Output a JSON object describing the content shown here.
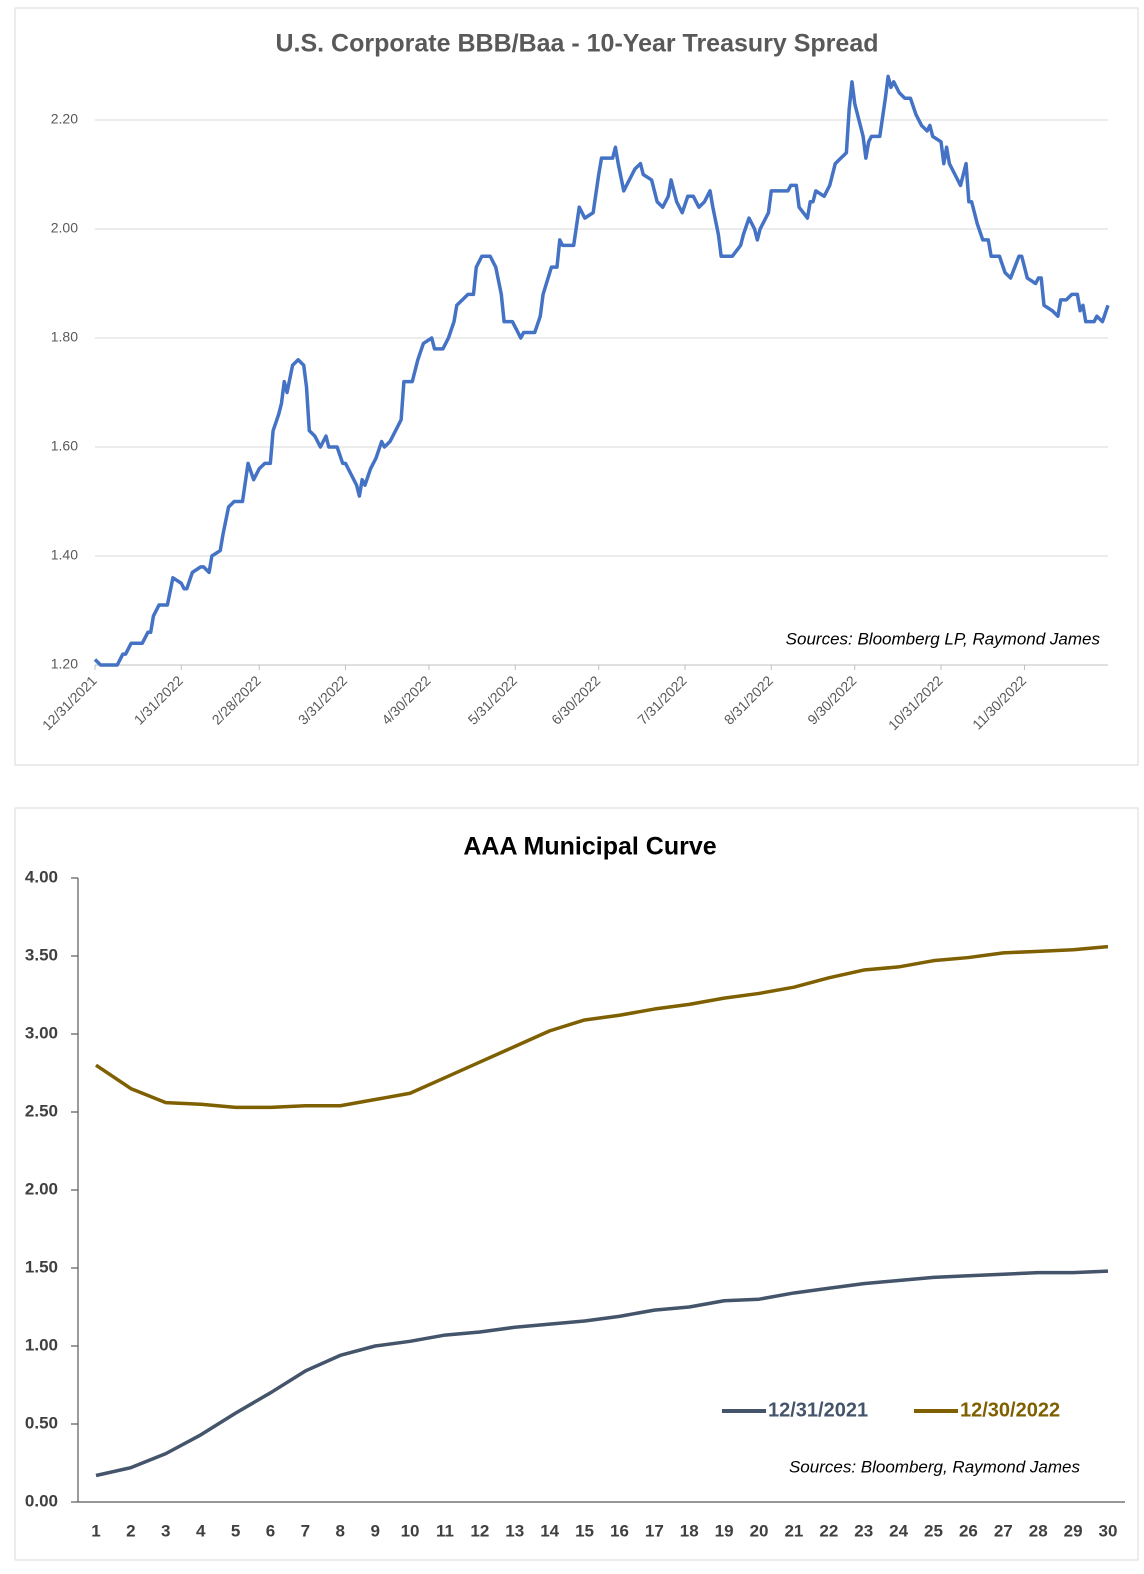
{
  "chart_data": [
    {
      "type": "line",
      "title": "U.S. Corporate BBB/Baa - 10-Year Treasury Spread",
      "annotation": "Sources: Bloomberg LP, Raymond James",
      "color": "#4472c4",
      "grid": true,
      "x": [
        "12/31/2021",
        "1/2/2022",
        "1/5/2022",
        "1/8/2022",
        "1/10/2022",
        "1/11/2022",
        "1/13/2022",
        "1/17/2022",
        "1/19/2022",
        "1/20/2022",
        "1/21/2022",
        "1/23/2022",
        "1/26/2022",
        "1/28/2022",
        "1/31/2022",
        "2/1/2022",
        "2/2/2022",
        "2/4/2022",
        "2/7/2022",
        "2/8/2022",
        "2/10/2022",
        "2/11/2022",
        "2/14/2022",
        "2/15/2022",
        "2/17/2022",
        "2/19/2022",
        "2/22/2022",
        "2/24/2022",
        "2/26/2022",
        "2/28/2022",
        "3/2/2022",
        "3/4/2022",
        "3/5/2022",
        "3/7/2022",
        "3/8/2022",
        "3/9/2022",
        "3/10/2022",
        "3/12/2022",
        "3/14/2022",
        "3/16/2022",
        "3/17/2022",
        "3/18/2022",
        "3/20/2022",
        "3/22/2022",
        "3/24/2022",
        "3/25/2022",
        "3/28/2022",
        "3/30/2022",
        "3/31/2022",
        "4/2/2022",
        "4/4/2022",
        "4/5/2022",
        "4/6/2022",
        "4/7/2022",
        "4/9/2022",
        "4/11/2022",
        "4/13/2022",
        "4/14/2022",
        "4/16/2022",
        "4/18/2022",
        "4/20/2022",
        "4/21/2022",
        "4/24/2022",
        "4/26/2022",
        "4/28/2022",
        "5/1/2022",
        "5/2/2022",
        "5/5/2022",
        "5/7/2022",
        "5/9/2022",
        "5/10/2022",
        "5/12/2022",
        "5/14/2022",
        "5/16/2022",
        "5/17/2022",
        "5/19/2022",
        "5/22/2022",
        "5/24/2022",
        "5/26/2022",
        "5/27/2022",
        "5/30/2022",
        "6/2/2022",
        "6/3/2022",
        "6/7/2022",
        "6/9/2022",
        "6/10/2022",
        "6/13/2022",
        "6/15/2022",
        "6/16/2022",
        "6/17/2022",
        "6/21/2022",
        "6/23/2022",
        "6/25/2022",
        "6/28/2022",
        "6/30/2022",
        "7/1/2022",
        "7/5/2022",
        "7/6/2022",
        "7/7/2022",
        "7/9/2022",
        "7/12/2022",
        "7/13/2022",
        "7/15/2022",
        "7/16/2022",
        "7/19/2022",
        "7/21/2022",
        "7/23/2022",
        "7/25/2022",
        "7/26/2022",
        "7/28/2022",
        "7/30/2022",
        "8/1/2022",
        "8/3/2022",
        "8/5/2022",
        "8/7/2022",
        "8/9/2022",
        "8/10/2022",
        "8/12/2022",
        "8/13/2022",
        "8/17/2022",
        "8/20/2022",
        "8/21/2022",
        "8/23/2022",
        "8/25/2022",
        "8/26/2022",
        "8/27/2022",
        "8/30/2022",
        "8/31/2022",
        "9/6/2022",
        "9/7/2022",
        "9/9/2022",
        "9/10/2022",
        "9/13/2022",
        "9/14/2022",
        "9/15/2022",
        "9/16/2022",
        "9/19/2022",
        "9/21/2022",
        "9/23/2022",
        "9/25/2022",
        "9/27/2022",
        "9/28/2022",
        "9/29/2022",
        "9/30/2022",
        "10/3/2022",
        "10/4/2022",
        "10/5/2022",
        "10/6/2022",
        "10/9/2022",
        "10/11/2022",
        "10/12/2022",
        "10/13/2022",
        "10/14/2022",
        "10/16/2022",
        "10/18/2022",
        "10/20/2022",
        "10/22/2022",
        "10/24/2022",
        "10/26/2022",
        "10/27/2022",
        "10/28/2022",
        "10/31/2022",
        "11/1/2022",
        "11/2/2022",
        "11/3/2022",
        "11/5/2022",
        "11/7/2022",
        "11/9/2022",
        "11/10/2022",
        "11/11/2022",
        "11/13/2022",
        "11/15/2022",
        "11/17/2022",
        "11/18/2022",
        "11/21/2022",
        "11/23/2022",
        "11/25/2022",
        "11/28/2022",
        "11/29/2022",
        "12/1/2022",
        "12/4/2022",
        "12/5/2022",
        "12/6/2022",
        "12/7/2022",
        "12/10/2022",
        "12/12/2022",
        "12/13/2022",
        "12/15/2022",
        "12/17/2022",
        "12/19/2022",
        "12/20/2022",
        "12/21/2022",
        "12/22/2022",
        "12/25/2022",
        "12/26/2022",
        "12/28/2022",
        "12/30/2022"
      ],
      "values": [
        1.21,
        1.2,
        1.2,
        1.2,
        1.22,
        1.22,
        1.24,
        1.24,
        1.26,
        1.26,
        1.29,
        1.31,
        1.31,
        1.36,
        1.35,
        1.34,
        1.34,
        1.37,
        1.38,
        1.38,
        1.37,
        1.4,
        1.41,
        1.44,
        1.49,
        1.5,
        1.5,
        1.57,
        1.54,
        1.56,
        1.57,
        1.57,
        1.63,
        1.66,
        1.68,
        1.72,
        1.7,
        1.75,
        1.76,
        1.75,
        1.71,
        1.63,
        1.62,
        1.6,
        1.62,
        1.6,
        1.6,
        1.57,
        1.57,
        1.55,
        1.53,
        1.51,
        1.54,
        1.53,
        1.56,
        1.58,
        1.61,
        1.6,
        1.61,
        1.63,
        1.65,
        1.72,
        1.72,
        1.76,
        1.79,
        1.8,
        1.78,
        1.78,
        1.8,
        1.83,
        1.86,
        1.87,
        1.88,
        1.88,
        1.93,
        1.95,
        1.95,
        1.93,
        1.88,
        1.83,
        1.83,
        1.8,
        1.81,
        1.81,
        1.84,
        1.88,
        1.93,
        1.93,
        1.98,
        1.97,
        1.97,
        2.04,
        2.02,
        2.03,
        2.1,
        2.13,
        2.13,
        2.15,
        2.12,
        2.07,
        2.1,
        2.11,
        2.12,
        2.1,
        2.09,
        2.05,
        2.04,
        2.06,
        2.09,
        2.05,
        2.03,
        2.06,
        2.06,
        2.04,
        2.05,
        2.07,
        2.04,
        1.99,
        1.95,
        1.95,
        1.97,
        1.99,
        2.02,
        2.0,
        1.98,
        2.0,
        2.03,
        2.07,
        2.07,
        2.08,
        2.08,
        2.04,
        2.02,
        2.05,
        2.05,
        2.07,
        2.06,
        2.08,
        2.12,
        2.13,
        2.14,
        2.22,
        2.27,
        2.23,
        2.17,
        2.13,
        2.16,
        2.17,
        2.17,
        2.24,
        2.28,
        2.26,
        2.27,
        2.25,
        2.24,
        2.24,
        2.21,
        2.19,
        2.18,
        2.19,
        2.17,
        2.16,
        2.12,
        2.15,
        2.12,
        2.1,
        2.08,
        2.12,
        2.05,
        2.05,
        2.01,
        1.98,
        1.98,
        1.95,
        1.95,
        1.92,
        1.91,
        1.95,
        1.95,
        1.91,
        1.9,
        1.91,
        1.91,
        1.86,
        1.85,
        1.84,
        1.87,
        1.87,
        1.88,
        1.88,
        1.85,
        1.86,
        1.83,
        1.83,
        1.84,
        1.83,
        1.86
      ],
      "xlim": [
        "12/31/2021",
        "12/30/2022"
      ],
      "xticks": [
        "12/31/2021",
        "1/31/2022",
        "2/28/2022",
        "3/31/2022",
        "4/30/2022",
        "5/31/2022",
        "6/30/2022",
        "7/31/2022",
        "8/31/2022",
        "9/30/2022",
        "10/31/2022",
        "11/30/2022"
      ],
      "ylim": [
        1.2,
        2.3
      ],
      "yticks": [
        {
          "value": 1.2,
          "label": "1.20"
        },
        {
          "value": 1.4,
          "label": "1.40"
        },
        {
          "value": 1.6,
          "label": "1.60"
        },
        {
          "value": 1.8,
          "label": "1.80"
        },
        {
          "value": 2.0,
          "label": "2.00"
        },
        {
          "value": 2.2,
          "label": "2.20"
        }
      ]
    },
    {
      "type": "line",
      "title": "AAA Municipal Curve",
      "annotation": "Sources: Bloomberg, Raymond James",
      "grid": false,
      "legend": "lower right",
      "categories": [
        1,
        2,
        3,
        4,
        5,
        6,
        7,
        8,
        9,
        10,
        11,
        12,
        13,
        14,
        15,
        16,
        17,
        18,
        19,
        20,
        21,
        22,
        23,
        24,
        25,
        26,
        27,
        28,
        29,
        30
      ],
      "series": [
        {
          "name": "12/31/2021",
          "color": "#44546a",
          "values": [
            0.17,
            0.22,
            0.31,
            0.43,
            0.57,
            0.7,
            0.84,
            0.94,
            1.0,
            1.03,
            1.07,
            1.09,
            1.12,
            1.14,
            1.16,
            1.19,
            1.23,
            1.25,
            1.29,
            1.3,
            1.34,
            1.37,
            1.4,
            1.42,
            1.44,
            1.45,
            1.46,
            1.47,
            1.47,
            1.48
          ]
        },
        {
          "name": "12/30/2022",
          "color": "#7f6000",
          "values": [
            2.8,
            2.65,
            2.56,
            2.55,
            2.53,
            2.53,
            2.54,
            2.54,
            2.58,
            2.62,
            2.72,
            2.82,
            2.92,
            3.02,
            3.09,
            3.12,
            3.16,
            3.19,
            3.23,
            3.26,
            3.3,
            3.36,
            3.41,
            3.43,
            3.47,
            3.49,
            3.52,
            3.53,
            3.54,
            3.56
          ]
        }
      ],
      "ylim": [
        0,
        4
      ],
      "yticks": [
        {
          "value": 0,
          "label": "0.00"
        },
        {
          "value": 0.5,
          "label": "0.50"
        },
        {
          "value": 1,
          "label": "1.00"
        },
        {
          "value": 1.5,
          "label": "1.50"
        },
        {
          "value": 2,
          "label": "2.00"
        },
        {
          "value": 2.5,
          "label": "2.50"
        },
        {
          "value": 3,
          "label": "3.00"
        },
        {
          "value": 3.5,
          "label": "3.50"
        },
        {
          "value": 4,
          "label": "4.00"
        }
      ]
    }
  ]
}
